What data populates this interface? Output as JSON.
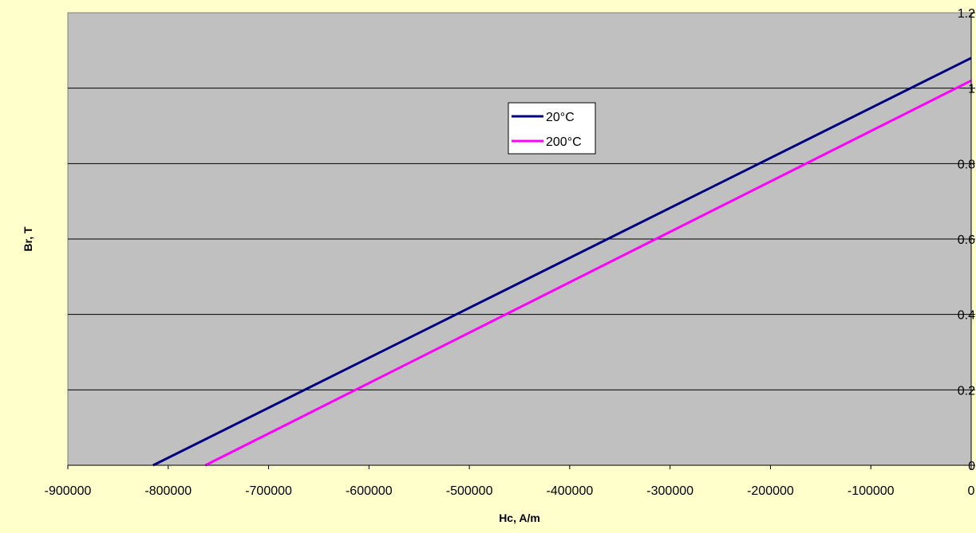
{
  "chart_data": {
    "type": "line",
    "xlabel": "Hc, A/m",
    "ylabel": "Br, T",
    "xlim": [
      -900000,
      0
    ],
    "ylim": [
      0,
      1.2
    ],
    "x_ticks": [
      -900000,
      -800000,
      -700000,
      -600000,
      -500000,
      -400000,
      -300000,
      -200000,
      -100000,
      0
    ],
    "x_tick_labels": [
      "-900000",
      "-800000",
      "-700000",
      "-600000",
      "-500000",
      "-400000",
      "-300000",
      "-200000",
      "-100000",
      "0"
    ],
    "y_ticks": [
      0,
      0.2,
      0.4,
      0.6,
      0.8,
      1,
      1.2
    ],
    "y_tick_labels": [
      "0",
      "0.2",
      "0.4",
      "0.6",
      "0.8",
      "1",
      "1.2"
    ],
    "y_axis_side": "right",
    "grid": "horizontal major lines",
    "legend_position": "upper-center inside plot",
    "plot_background": "#C0C0C0",
    "page_background": "#FFFFCC",
    "series": [
      {
        "name": "20°C",
        "color": "#000080",
        "x": [
          -815000,
          0
        ],
        "y": [
          0,
          1.08
        ]
      },
      {
        "name": "200°C",
        "color": "#FF00FF",
        "x": [
          -763000,
          0
        ],
        "y": [
          0,
          1.02
        ]
      }
    ]
  }
}
